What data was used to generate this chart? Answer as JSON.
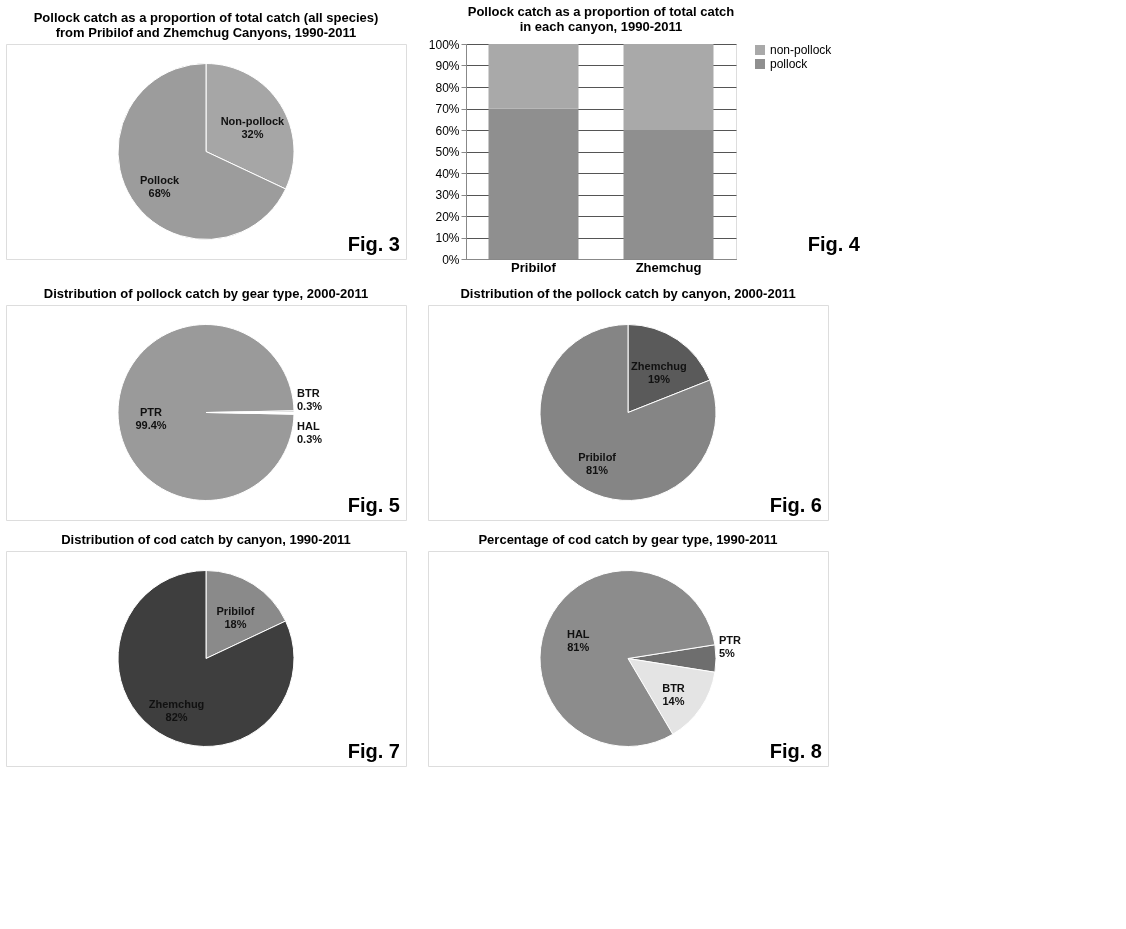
{
  "chart_data": [
    {
      "type": "pie",
      "title": [
        "Pollock catch as a proportion of total catch (all species)",
        "from Pribilof and Zhemchug Canyons, 1990-2011"
      ],
      "categories": [
        "Non-pollock",
        "Pollock"
      ],
      "values": [
        32,
        68
      ],
      "value_labels": [
        "32%",
        "68%"
      ],
      "colors": [
        "#a6a6a6",
        "#9c9c9c"
      ],
      "annotations": [
        "Fig. 3"
      ]
    },
    {
      "type": "bar",
      "stacked": true,
      "title": [
        "Pollock catch as a proportion of total catch",
        "in each canyon, 1990-2011"
      ],
      "categories": [
        "Pribilof",
        "Zhemchug"
      ],
      "ylim": [
        0,
        100
      ],
      "yticks": [
        {
          "value": 0,
          "label": "0%"
        },
        {
          "value": 10,
          "label": "10%"
        },
        {
          "value": 20,
          "label": "20%"
        },
        {
          "value": 30,
          "label": "30%"
        },
        {
          "value": 40,
          "label": "40%"
        },
        {
          "value": 50,
          "label": "50%"
        },
        {
          "value": 60,
          "label": "60%"
        },
        {
          "value": 70,
          "label": "70%"
        },
        {
          "value": 80,
          "label": "80%"
        },
        {
          "value": 90,
          "label": "90%"
        },
        {
          "value": 100,
          "label": "100%"
        }
      ],
      "grid": "y",
      "legend": "right",
      "series": [
        {
          "name": "pollock",
          "color": "#8f8f8f",
          "values": [
            70,
            60
          ]
        },
        {
          "name": "non-pollock",
          "color": "#a9a9a9",
          "values": [
            30,
            40
          ]
        }
      ],
      "annotations": [
        "Fig. 4"
      ]
    },
    {
      "type": "pie",
      "title": "Distribution of pollock catch by gear type, 2000-2011",
      "categories": [
        "PTR",
        "BTR",
        "HAL"
      ],
      "values": [
        99.4,
        0.3,
        0.3
      ],
      "value_labels": [
        "99.4%",
        "0.3%",
        "0.3%"
      ],
      "colors": [
        "#9a9a9a",
        "#c8c8c8",
        "#ffffff"
      ],
      "annotations": [
        "Fig. 5"
      ]
    },
    {
      "type": "pie",
      "title": "Distribution of the pollock catch by canyon, 2000-2011",
      "categories": [
        "Zhemchug",
        "Pribilof"
      ],
      "values": [
        19,
        81
      ],
      "value_labels": [
        "19%",
        "81%"
      ],
      "colors": [
        "#5a5a5a",
        "#858585"
      ],
      "annotations": [
        "Fig. 6"
      ]
    },
    {
      "type": "pie",
      "title": "Distribution of cod catch by canyon, 1990-2011",
      "categories": [
        "Pribilof",
        "Zhemchug"
      ],
      "values": [
        18,
        82
      ],
      "value_labels": [
        "18%",
        "82%"
      ],
      "colors": [
        "#8a8a8a",
        "#3e3e3e"
      ],
      "annotations": [
        "Fig. 7"
      ]
    },
    {
      "type": "pie",
      "title": "Percentage of cod catch by gear  type, 1990-2011",
      "categories": [
        "PTR",
        "BTR",
        "HAL"
      ],
      "values": [
        5,
        14,
        81
      ],
      "value_labels": [
        "5%",
        "14%",
        "81%"
      ],
      "colors": [
        "#6e6e6e",
        "#e4e4e4",
        "#8c8c8c"
      ],
      "annotations": [
        "Fig. 8"
      ]
    }
  ]
}
